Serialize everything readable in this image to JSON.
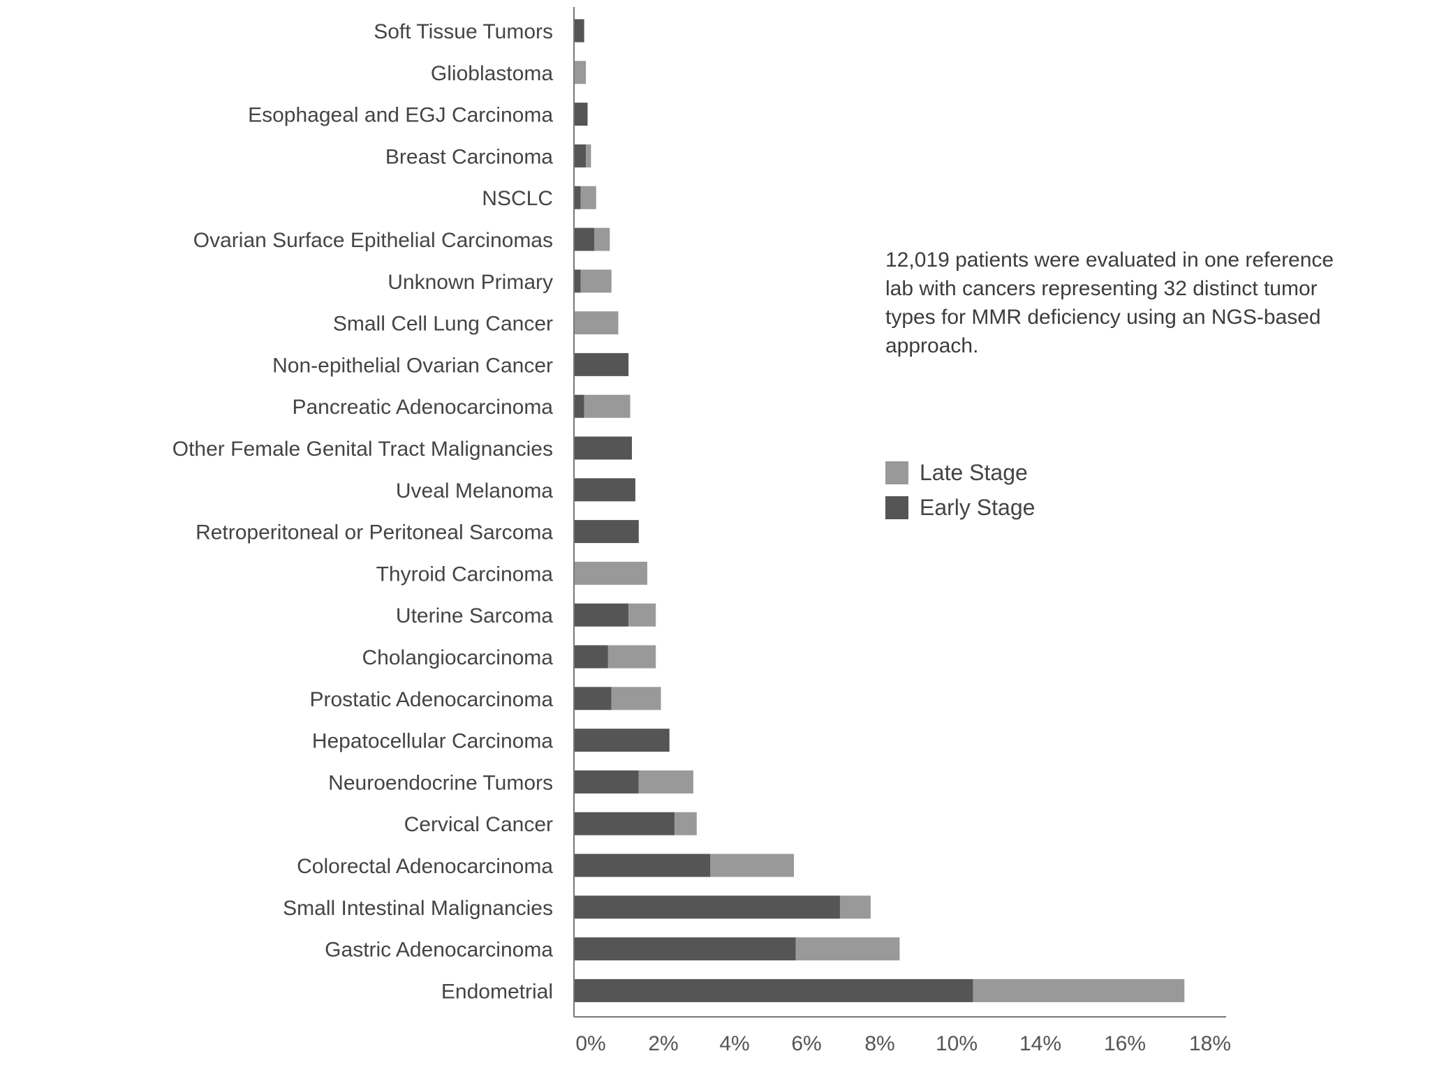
{
  "chart_data": {
    "type": "bar",
    "orientation": "horizontal",
    "stacked": true,
    "categories": [
      "Soft Tissue Tumors",
      "Glioblastoma",
      "Esophageal and EGJ Carcinoma",
      "Breast Carcinoma",
      "NSCLC",
      "Ovarian Surface Epithelial Carcinomas",
      "Unknown Primary",
      "Small Cell Lung Cancer",
      "Non-epithelial Ovarian Cancer",
      "Pancreatic Adenocarcinoma",
      "Other Female Genital Tract Malignancies",
      "Uveal Melanoma",
      "Retroperitoneal or Peritoneal Sarcoma",
      "Thyroid Carcinoma",
      "Uterine Sarcoma",
      "Cholangiocarcinoma",
      "Prostatic Adenocarcinoma",
      "Hepatocellular Carcinoma",
      "Neuroendocrine Tumors",
      "Cervical Cancer",
      "Colorectal Adenocarcinoma",
      "Small Intestinal Malignancies",
      "Gastric Adenocarcinoma",
      "Endometrial"
    ],
    "series": [
      {
        "name": "Early Stage",
        "color": "#555555",
        "values": [
          0.3,
          0,
          0.4,
          0.35,
          0.2,
          0.6,
          0.2,
          0,
          1.6,
          0.3,
          1.7,
          1.8,
          1.9,
          0,
          1.6,
          1.0,
          1.1,
          2.8,
          1.9,
          2.95,
          4.0,
          7.8,
          6.5,
          11.7
        ]
      },
      {
        "name": "Late Stage",
        "color": "#999999",
        "values": [
          0,
          0.35,
          0,
          0.15,
          0.45,
          0.45,
          0.9,
          1.3,
          0,
          1.35,
          0,
          0,
          0,
          2.15,
          0.8,
          1.4,
          1.45,
          0,
          1.6,
          0.65,
          2.45,
          0.9,
          3.05,
          6.2
        ]
      }
    ],
    "x_tick_labels": [
      "0%",
      "2%",
      "4%",
      "6%",
      "8%",
      "10%",
      "14%",
      "16%",
      "18%"
    ],
    "xlim": [
      0,
      19
    ],
    "title": "",
    "xlabel": "",
    "ylabel": "",
    "grid": false,
    "legend_position": "right"
  },
  "annotation": "12,019 patients were evaluated in one reference lab with cancers representing 32 distinct tumor types for MMR deficiency using an NGS-based approach.",
  "legend": [
    {
      "label": "Late Stage",
      "color": "#999999"
    },
    {
      "label": "Early Stage",
      "color": "#555555"
    }
  ]
}
